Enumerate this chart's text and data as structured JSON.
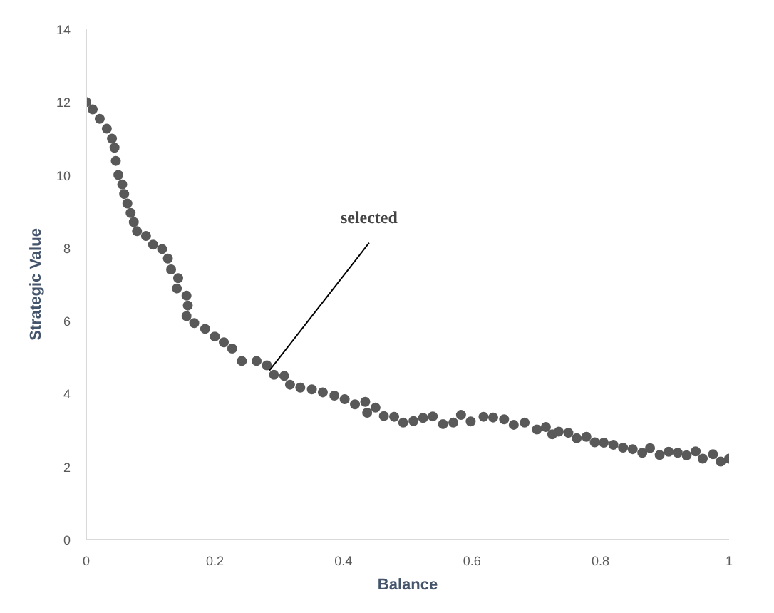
{
  "chart_data": {
    "type": "scatter",
    "xlabel": "Balance",
    "ylabel": "Strategic Value",
    "xlim": [
      0,
      1
    ],
    "ylim": [
      0,
      14
    ],
    "xticks": [
      0,
      0.2,
      0.4,
      0.6,
      0.8,
      1
    ],
    "yticks": [
      0,
      2,
      4,
      6,
      8,
      10,
      12,
      14
    ],
    "grid": false,
    "marker": "circle",
    "annotations": [
      {
        "text": "selected",
        "x": 0.28,
        "y": 4.78
      }
    ],
    "series": [
      {
        "color": "#595959",
        "x": [
          0,
          0.01,
          0.021,
          0.032,
          0.04,
          0.044,
          0.046,
          0.05,
          0.056,
          0.059,
          0.064,
          0.069,
          0.074,
          0.079,
          0.093,
          0.104,
          0.118,
          0.127,
          0.132,
          0.143,
          0.141,
          0.156,
          0.158,
          0.156,
          0.168,
          0.185,
          0.2,
          0.214,
          0.227,
          0.242,
          0.265,
          0.281,
          0.292,
          0.308,
          0.317,
          0.333,
          0.351,
          0.368,
          0.386,
          0.402,
          0.418,
          0.434,
          0.437,
          0.45,
          0.463,
          0.479,
          0.493,
          0.509,
          0.524,
          0.539,
          0.555,
          0.571,
          0.583,
          0.598,
          0.618,
          0.633,
          0.65,
          0.665,
          0.682,
          0.701,
          0.715,
          0.725,
          0.735,
          0.75,
          0.763,
          0.778,
          0.791,
          0.805,
          0.82,
          0.835,
          0.85,
          0.865,
          0.877,
          0.892,
          0.906,
          0.92,
          0.934,
          0.948,
          0.959,
          0.975,
          0.987,
          1.0
        ],
        "values": [
          12.0,
          11.8,
          11.54,
          11.27,
          11.0,
          10.75,
          10.39,
          10.0,
          9.74,
          9.48,
          9.22,
          8.96,
          8.71,
          8.46,
          8.33,
          8.09,
          7.97,
          7.71,
          7.41,
          7.17,
          6.89,
          6.69,
          6.42,
          6.13,
          5.94,
          5.78,
          5.57,
          5.41,
          5.24,
          4.9,
          4.9,
          4.78,
          4.52,
          4.49,
          4.25,
          4.17,
          4.12,
          4.04,
          3.95,
          3.85,
          3.71,
          3.78,
          3.48,
          3.62,
          3.39,
          3.37,
          3.21,
          3.25,
          3.34,
          3.38,
          3.17,
          3.21,
          3.42,
          3.24,
          3.37,
          3.35,
          3.3,
          3.15,
          3.21,
          3.02,
          3.09,
          2.89,
          2.96,
          2.93,
          2.78,
          2.82,
          2.67,
          2.66,
          2.6,
          2.52,
          2.48,
          2.38,
          2.51,
          2.32,
          2.41,
          2.38,
          2.31,
          2.42,
          2.22,
          2.34,
          2.14,
          2.22
        ]
      }
    ]
  }
}
